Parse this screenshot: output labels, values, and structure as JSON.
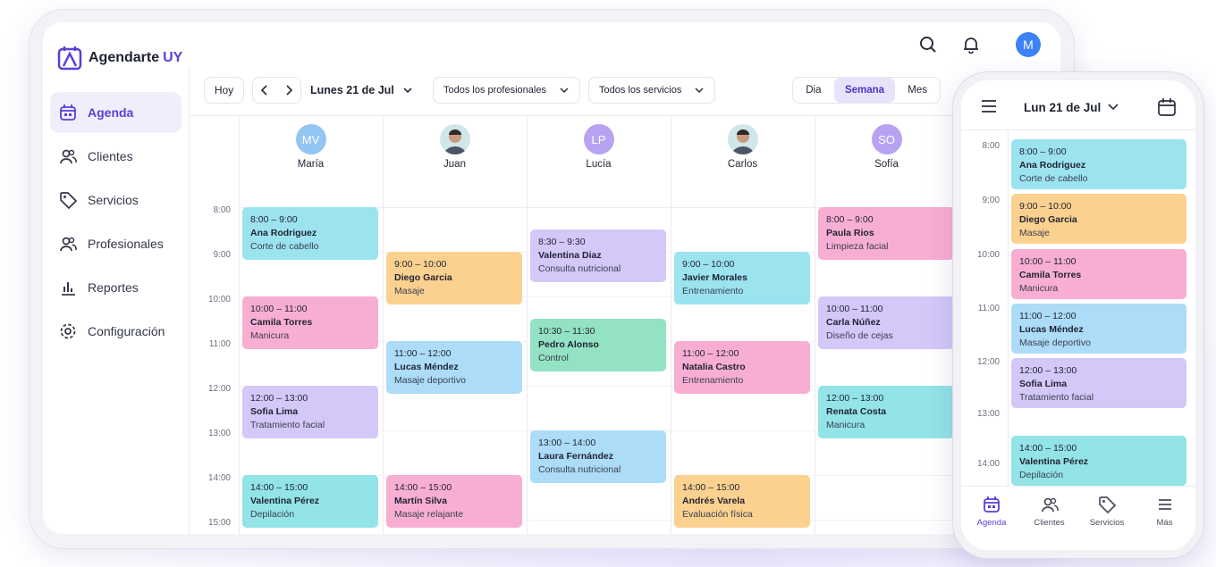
{
  "brand": {
    "name": "Agendarte",
    "suffix": "UY"
  },
  "user": {
    "initial": "M"
  },
  "sidebar": {
    "items": [
      "Agenda",
      "Clientes",
      "Servicios",
      "Profesionales",
      "Reportes",
      "Configuración"
    ],
    "active": 0
  },
  "toolbar": {
    "today": "Hoy",
    "date": "Lunes 21 de Jul",
    "filters": [
      "Todos los profesionales",
      "Todos los servicios"
    ],
    "views": [
      "Dia",
      "Semana",
      "Mes"
    ],
    "active_view": 1
  },
  "calendar": {
    "times": [
      "8:00",
      "9:00",
      "10:00",
      "11:00",
      "12:00",
      "13:00",
      "14:00",
      "15:00"
    ],
    "professionals": [
      {
        "initials": "MV",
        "name": "María",
        "color": "#93c5f3",
        "appointments": [
          {
            "time": "8:00 – 9:00",
            "client": "Ana Rodriguez",
            "service": "Corte de cabello",
            "color": "#9be3ef"
          },
          {
            "time": "10:00 – 11:00",
            "client": "Camila Torres",
            "service": "Manicura",
            "color": "#f8aed2"
          },
          {
            "time": "12:00 – 13:00",
            "client": "Sofia Lima",
            "service": "Tratamiento facial",
            "color": "#d3c8f8"
          },
          {
            "time": "14:00 – 15:00",
            "client": "Valentina Pérez",
            "service": "Depilación",
            "color": "#92e4e6"
          }
        ]
      },
      {
        "name": "Juan",
        "color": "#4b5563",
        "appointments": [
          {
            "time": "9:00 – 10:00",
            "client": "Diego Garcia",
            "service": "Masaje",
            "color": "#fbd18f"
          },
          {
            "time": "11:00 – 12:00",
            "client": "Lucas Méndez",
            "service": "Masaje deportivo",
            "color": "#acdcf7"
          },
          {
            "time": "14:00 – 15:00",
            "client": "Martín Silva",
            "service": "Masaje relajante",
            "color": "#f8aed2"
          }
        ]
      },
      {
        "initials": "LP",
        "name": "Lucía",
        "color": "#b7a3f2",
        "appointments": [
          {
            "time": "8:30 – 9:30",
            "client": "Valentina Diaz",
            "service": "Consulta nutricional",
            "color": "#d3c8f8"
          },
          {
            "time": "10:30 – 11:30",
            "client": "Pedro Alonso",
            "service": "Control",
            "color": "#93e2c3"
          },
          {
            "time": "13:00 – 14:00",
            "client": "Laura Fernández",
            "service": "Consulta nutricional",
            "color": "#acdcf7"
          }
        ]
      },
      {
        "name": "Carlos",
        "color": "#4b5563",
        "appointments": [
          {
            "time": "9:00 – 10:00",
            "client": "Javier Morales",
            "service": "Entrenamiento",
            "color": "#9be3ef"
          },
          {
            "time": "11:00 – 12:00",
            "client": "Natalia Castro",
            "service": "Entrenamiento",
            "color": "#f8aed2"
          },
          {
            "time": "14:00 – 15:00",
            "client": "Andrés Varela",
            "service": "Evaluación física",
            "color": "#fbd18f"
          }
        ]
      },
      {
        "initials": "SO",
        "name": "Sofía",
        "color": "#b7a3f2",
        "appointments": [
          {
            "time": "8:00 – 9:00",
            "client": "Paula Rios",
            "service": "Limpieza facial",
            "color": "#f8aed2"
          },
          {
            "time": "10:00 – 11:00",
            "client": "Carla Núñez",
            "service": "Diseño de cejas",
            "color": "#d3c8f8"
          },
          {
            "time": "12:00 – 13:00",
            "client": "Renata Costa",
            "service": "Manicura",
            "color": "#92e4e6"
          }
        ]
      }
    ]
  },
  "phone": {
    "date": "Lun 21 de Jul",
    "times": [
      "8:00",
      "9:00",
      "10:00",
      "11:00",
      "12:00",
      "13:00",
      "14:00"
    ],
    "appointments": [
      {
        "time": "8:00 – 9:00",
        "client": "Ana Rodriguez",
        "service": "Corte de cabello",
        "color": "#9be3ef"
      },
      {
        "time": "9:00 – 10:00",
        "client": "Diego Garcia",
        "service": "Masaje",
        "color": "#fbd18f"
      },
      {
        "time": "10:00 – 11:00",
        "client": "Camila Torres",
        "service": "Manicura",
        "color": "#f8aed2"
      },
      {
        "time": "11:00 – 12:00",
        "client": "Lucas Méndez",
        "service": "Masaje deportivo",
        "color": "#acdcf7"
      },
      {
        "time": "12:00 – 13:00",
        "client": "Sofia Lima",
        "service": "Tratamiento facial",
        "color": "#d3c8f8"
      },
      {
        "time": "14:00 – 15:00",
        "client": "Valentina Pérez",
        "service": "Depilación",
        "color": "#92e4e6"
      }
    ],
    "nav": [
      "Agenda",
      "Clientes",
      "Servicios",
      "Más"
    ],
    "active": 0
  }
}
